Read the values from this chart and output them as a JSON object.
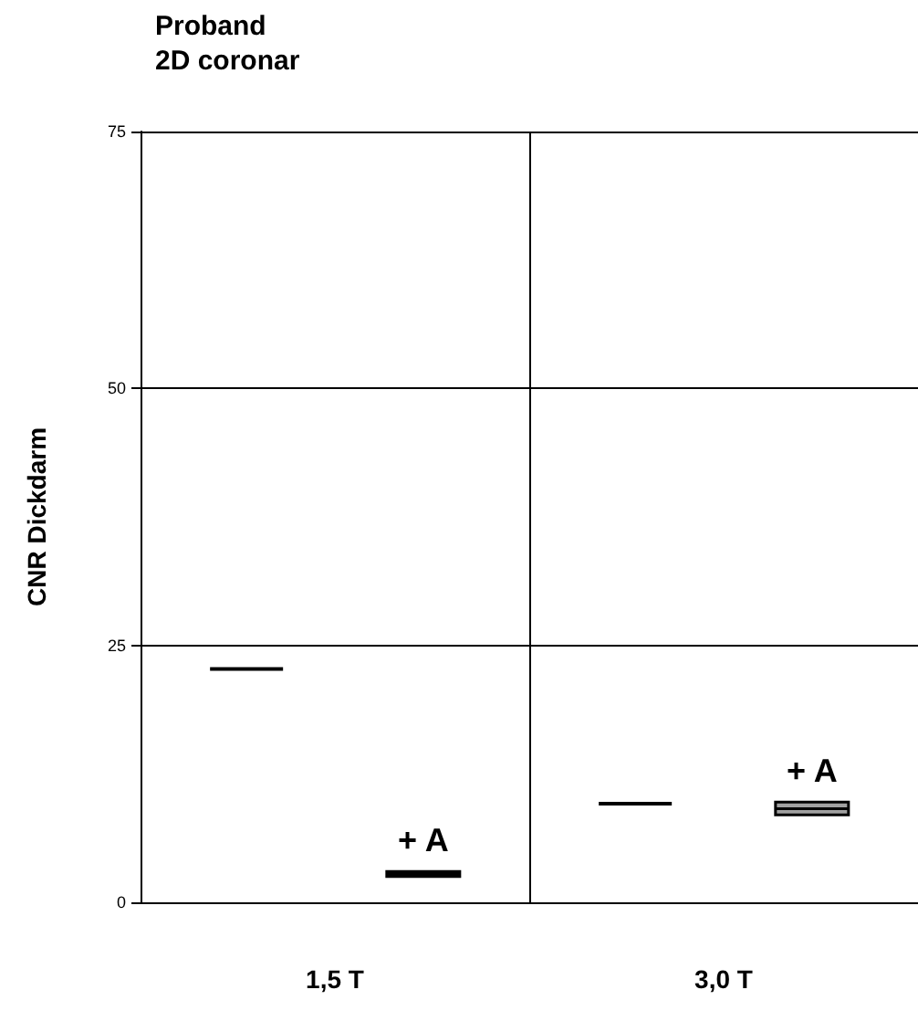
{
  "chart_data": {
    "type": "box",
    "title": "Proband",
    "subtitle": "2D coronar",
    "ylabel": "CNR Dickdarm",
    "categories": [
      "1,5 T",
      "3,0 T"
    ],
    "series": [
      {
        "color": "#000000",
        "boxes": [
          {
            "low": 22.7,
            "q1": 22.7,
            "median": 22.7,
            "q3": 22.7,
            "high": 22.7
          },
          {
            "low": 9.6,
            "q1": 9.6,
            "median": 9.6,
            "q3": 9.6,
            "high": 9.6
          }
        ]
      },
      {
        "name": "+ A",
        "colors": [
          "#000000",
          "#a0a0a0"
        ],
        "boxes": [
          {
            "low": 2.5,
            "q1": 2.5,
            "median": 2.8,
            "q3": 3.0,
            "high": 3.0
          },
          {
            "low": 8.5,
            "q1": 8.5,
            "median": 9.1,
            "q3": 9.75,
            "high": 9.75
          }
        ]
      }
    ],
    "ylim": [
      0,
      75
    ],
    "yticks": [
      0,
      25,
      50,
      75
    ],
    "grid": true
  }
}
